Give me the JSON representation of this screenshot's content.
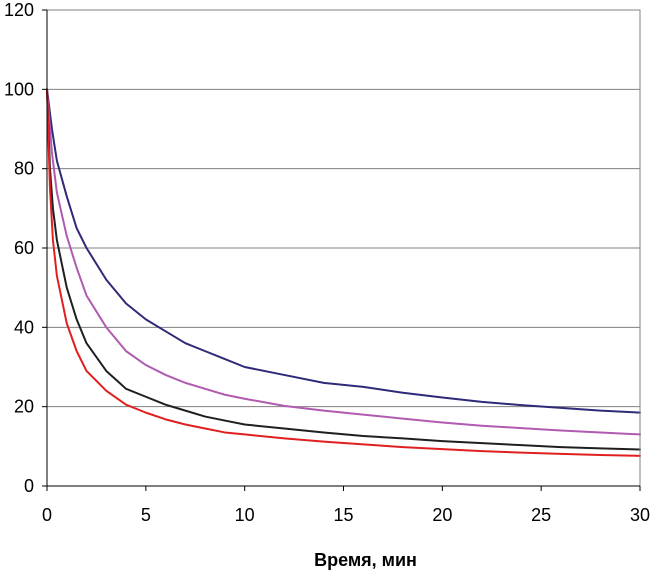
{
  "chart_data": {
    "type": "line",
    "title": "",
    "xlabel": "Время, мин",
    "ylabel": "",
    "xlim": [
      0,
      30
    ],
    "ylim": [
      0,
      120
    ],
    "x_ticks": [
      0,
      5,
      10,
      15,
      20,
      25,
      30
    ],
    "y_ticks": [
      0,
      20,
      40,
      60,
      80,
      100,
      120
    ],
    "grid": "horizontal",
    "legend": "none",
    "series": [
      {
        "color": "#2e2a78",
        "points": [
          [
            0,
            100
          ],
          [
            0.25,
            90
          ],
          [
            0.5,
            82
          ],
          [
            1,
            73
          ],
          [
            1.5,
            65
          ],
          [
            2,
            60
          ],
          [
            3,
            52
          ],
          [
            4,
            46
          ],
          [
            5,
            42
          ],
          [
            6,
            39
          ],
          [
            7,
            36
          ],
          [
            8,
            34
          ],
          [
            9,
            32
          ],
          [
            10,
            30
          ],
          [
            12,
            28
          ],
          [
            14,
            26
          ],
          [
            16,
            25
          ],
          [
            18,
            23.5
          ],
          [
            20,
            22.3
          ],
          [
            22,
            21.2
          ],
          [
            24,
            20.4
          ],
          [
            26,
            19.7
          ],
          [
            28,
            19
          ],
          [
            30,
            18.5
          ]
        ]
      },
      {
        "color": "#b05ab0",
        "points": [
          [
            0,
            100
          ],
          [
            0.25,
            84
          ],
          [
            0.5,
            74
          ],
          [
            1,
            63
          ],
          [
            1.5,
            55
          ],
          [
            2,
            48
          ],
          [
            3,
            40
          ],
          [
            4,
            34
          ],
          [
            5,
            30.5
          ],
          [
            6,
            28
          ],
          [
            7,
            26
          ],
          [
            8,
            24.5
          ],
          [
            9,
            23
          ],
          [
            10,
            22
          ],
          [
            12,
            20.2
          ],
          [
            14,
            19
          ],
          [
            16,
            18
          ],
          [
            18,
            17
          ],
          [
            20,
            16
          ],
          [
            22,
            15.2
          ],
          [
            24,
            14.6
          ],
          [
            26,
            14
          ],
          [
            28,
            13.5
          ],
          [
            30,
            13
          ]
        ]
      },
      {
        "color": "#1f1f1f",
        "points": [
          [
            0,
            100
          ],
          [
            0.15,
            80
          ],
          [
            0.3,
            70
          ],
          [
            0.5,
            62
          ],
          [
            1,
            50
          ],
          [
            1.5,
            42
          ],
          [
            2,
            36
          ],
          [
            3,
            29
          ],
          [
            4,
            24.5
          ],
          [
            5,
            22.5
          ],
          [
            6,
            20.5
          ],
          [
            7,
            19
          ],
          [
            8,
            17.5
          ],
          [
            9,
            16.5
          ],
          [
            10,
            15.5
          ],
          [
            12,
            14.5
          ],
          [
            14,
            13.5
          ],
          [
            16,
            12.6
          ],
          [
            18,
            12
          ],
          [
            20,
            11.3
          ],
          [
            22,
            10.8
          ],
          [
            24,
            10.3
          ],
          [
            26,
            9.8
          ],
          [
            28,
            9.5
          ],
          [
            30,
            9.2
          ]
        ]
      },
      {
        "color": "#e02020",
        "points": [
          [
            0,
            100
          ],
          [
            0.15,
            75
          ],
          [
            0.3,
            62
          ],
          [
            0.5,
            53
          ],
          [
            1,
            41
          ],
          [
            1.5,
            34
          ],
          [
            2,
            29
          ],
          [
            3,
            24
          ],
          [
            4,
            20.5
          ],
          [
            5,
            18.5
          ],
          [
            6,
            16.8
          ],
          [
            7,
            15.5
          ],
          [
            8,
            14.5
          ],
          [
            9,
            13.5
          ],
          [
            10,
            13
          ],
          [
            12,
            12
          ],
          [
            14,
            11.2
          ],
          [
            16,
            10.5
          ],
          [
            18,
            9.8
          ],
          [
            20,
            9.3
          ],
          [
            22,
            8.8
          ],
          [
            24,
            8.4
          ],
          [
            26,
            8.1
          ],
          [
            28,
            7.8
          ],
          [
            30,
            7.6
          ]
        ]
      }
    ]
  }
}
